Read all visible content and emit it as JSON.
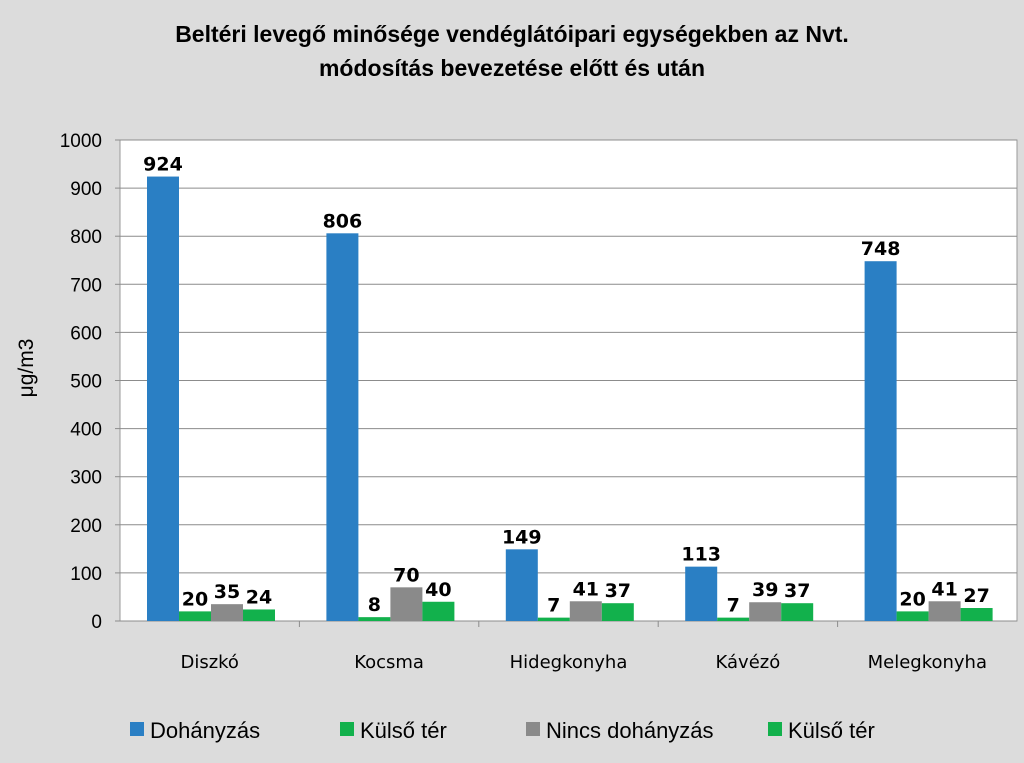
{
  "chart_data": {
    "type": "bar",
    "title": "Beltéri levegő minősége vendéglátóipari egységekben az Nvt.",
    "subtitle": "módosítás bevezetése előtt és után",
    "ylabel": "μg/m3",
    "xlabel": "",
    "ylim": [
      0,
      1000
    ],
    "yticks": [
      0,
      100,
      200,
      300,
      400,
      500,
      600,
      700,
      800,
      900,
      1000
    ],
    "grid": true,
    "legend_position": "bottom",
    "categories": [
      "Diszkó",
      "Kocsma",
      "Hidegkonyha",
      "Kávézó",
      "Melegkonyha"
    ],
    "series": [
      {
        "name": "Dohányzás",
        "color": "#2a7fc4",
        "values": [
          924,
          806,
          149,
          113,
          748
        ]
      },
      {
        "name": "Külső tér",
        "color": "#12b14c",
        "values": [
          20,
          8,
          7,
          7,
          20
        ]
      },
      {
        "name": "Nincs dohányzás",
        "color": "#8a8a8a",
        "values": [
          35,
          70,
          41,
          39,
          41
        ]
      },
      {
        "name": "Külső tér",
        "color": "#12b14c",
        "values": [
          24,
          40,
          37,
          37,
          27
        ]
      }
    ]
  }
}
